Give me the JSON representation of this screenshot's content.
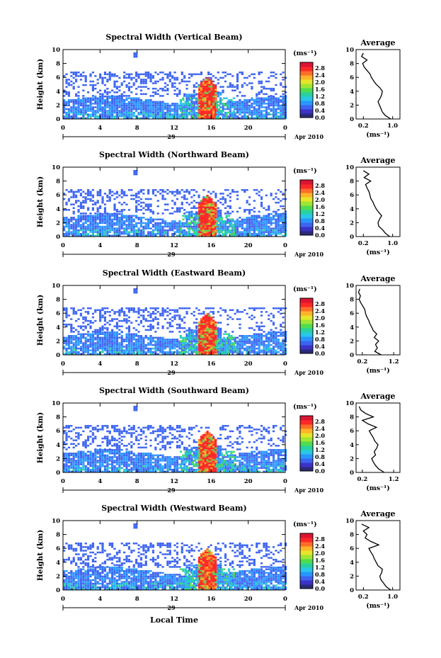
{
  "figure": {
    "x_label": "Local Time",
    "date_label": "Apr 2010",
    "day_label": "29",
    "avg_title": "Average",
    "unit_label": "(ms⁻¹)",
    "colorbar_ticks": [
      "2.8",
      "2.4",
      "2.0",
      "1.6",
      "1.2",
      "0.8",
      "0.4",
      "0.0"
    ],
    "colorbar_colors": [
      "#2a2a7a",
      "#3c32c8",
      "#3c64f0",
      "#2896ff",
      "#28c8e6",
      "#28d2a0",
      "#50dc50",
      "#a0e632",
      "#e6e628",
      "#ffb428",
      "#ff6e28",
      "#ff2828",
      "#dc1432"
    ],
    "accent_blue": "#3c50e6",
    "accent_red": "#ff3020"
  },
  "chart_data": [
    {
      "type": "heatmap",
      "title": "Spectral Width (Vertical Beam)",
      "ylabel": "Height (km)",
      "xlim": [
        0,
        24
      ],
      "ylim": [
        0,
        10
      ],
      "xticks": [
        "0",
        "4",
        "8",
        "12",
        "16",
        "20",
        "0"
      ],
      "yticks": [
        "0",
        "2",
        "4",
        "6",
        "8",
        "10"
      ],
      "colorbar_range": [
        0.0,
        2.8
      ],
      "avg_xticks": [
        "0.2",
        "1.0"
      ],
      "avg_xlim": [
        0.0,
        1.2
      ],
      "avg_heights": [
        0,
        0.5,
        1,
        1.5,
        2,
        2.5,
        3,
        3.5,
        4,
        4.5,
        5,
        5.5,
        6,
        6.5,
        7,
        7.5,
        8,
        8.5,
        9,
        9.5
      ],
      "avg_values": [
        0.95,
        0.8,
        0.72,
        0.68,
        0.64,
        0.6,
        0.66,
        0.7,
        0.72,
        0.65,
        0.55,
        0.48,
        0.42,
        0.38,
        0.3,
        0.22,
        0.18,
        0.3,
        0.15,
        0.2
      ]
    },
    {
      "type": "heatmap",
      "title": "Spectral Width (Northward Beam)",
      "ylabel": "Height (km)",
      "xlim": [
        0,
        24
      ],
      "ylim": [
        0,
        10
      ],
      "xticks": [
        "0",
        "4",
        "8",
        "12",
        "16",
        "20",
        "0"
      ],
      "yticks": [
        "0",
        "2",
        "4",
        "6",
        "8",
        "10"
      ],
      "colorbar_range": [
        0.0,
        2.8
      ],
      "avg_xticks": [
        "0.2",
        "1.0"
      ],
      "avg_xlim": [
        0.0,
        1.2
      ],
      "avg_heights": [
        0,
        0.5,
        1,
        1.5,
        2,
        2.5,
        3,
        3.5,
        4,
        4.5,
        5,
        5.5,
        6,
        6.5,
        7,
        7.5,
        8,
        8.5,
        9,
        9.5
      ],
      "avg_values": [
        0.92,
        0.8,
        0.72,
        0.62,
        0.6,
        0.64,
        0.7,
        0.62,
        0.55,
        0.5,
        0.46,
        0.4,
        0.38,
        0.35,
        0.3,
        0.26,
        0.4,
        0.22,
        0.35,
        0.2
      ]
    },
    {
      "type": "heatmap",
      "title": "Spectral Width (Eastward Beam)",
      "ylabel": "Height (km)",
      "xlim": [
        0,
        24
      ],
      "ylim": [
        0,
        10
      ],
      "xticks": [
        "0",
        "4",
        "8",
        "12",
        "16",
        "20",
        "0"
      ],
      "yticks": [
        "0",
        "2",
        "4",
        "6",
        "8",
        "10"
      ],
      "colorbar_range": [
        0.0,
        2.8
      ],
      "avg_xticks": [
        "0.2",
        "1.2"
      ],
      "avg_xlim": [
        0.0,
        1.4
      ],
      "avg_heights": [
        0,
        0.5,
        1,
        1.5,
        2,
        2.5,
        3,
        3.5,
        4,
        4.5,
        5,
        5.5,
        6,
        6.5,
        7,
        7.5,
        8,
        8.5,
        9,
        9.5
      ],
      "avg_values": [
        0.8,
        0.6,
        0.68,
        0.62,
        0.72,
        0.58,
        0.66,
        0.55,
        0.5,
        0.44,
        0.4,
        0.34,
        0.3,
        0.28,
        0.22,
        0.15,
        0.1,
        0.14,
        0.08,
        0.12
      ]
    },
    {
      "type": "heatmap",
      "title": "Spectral Width (Southward Beam)",
      "ylabel": "Height (km)",
      "xlim": [
        0,
        24
      ],
      "ylim": [
        0,
        10
      ],
      "xticks": [
        "0",
        "4",
        "8",
        "12",
        "16",
        "20",
        "0"
      ],
      "yticks": [
        "0",
        "2",
        "4",
        "6",
        "8",
        "10"
      ],
      "colorbar_range": [
        0.0,
        2.8
      ],
      "avg_xticks": [
        "0.2",
        "1.2"
      ],
      "avg_xlim": [
        0.0,
        1.4
      ],
      "avg_heights": [
        0,
        0.5,
        1,
        1.5,
        2,
        2.5,
        3,
        3.5,
        4,
        4.5,
        5,
        5.5,
        6,
        6.5,
        7,
        7.5,
        8,
        8.5,
        9,
        9.5
      ],
      "avg_values": [
        0.9,
        0.72,
        0.62,
        0.55,
        0.5,
        0.62,
        0.58,
        0.66,
        0.7,
        0.6,
        0.55,
        0.48,
        0.42,
        0.65,
        0.38,
        0.2,
        0.55,
        0.3,
        0.15,
        0.1
      ]
    },
    {
      "type": "heatmap",
      "title": "Spectral Width (Westward Beam)",
      "ylabel": "Height (km)",
      "xlim": [
        0,
        24
      ],
      "ylim": [
        0,
        10
      ],
      "xticks": [
        "0",
        "4",
        "8",
        "12",
        "16",
        "20",
        "0"
      ],
      "yticks": [
        "0",
        "2",
        "4",
        "6",
        "8",
        "10"
      ],
      "colorbar_range": [
        0.0,
        2.8
      ],
      "avg_xticks": [
        "0.2",
        "1.0"
      ],
      "avg_xlim": [
        0.0,
        1.2
      ],
      "avg_heights": [
        0,
        0.5,
        1,
        1.5,
        2,
        2.5,
        3,
        3.5,
        4,
        4.5,
        5,
        5.5,
        6,
        6.5,
        7,
        7.5,
        8,
        8.5,
        9,
        9.5
      ],
      "avg_values": [
        0.95,
        0.82,
        0.75,
        0.68,
        0.65,
        0.7,
        0.72,
        0.6,
        0.55,
        0.5,
        0.46,
        0.4,
        0.35,
        0.62,
        0.4,
        0.25,
        0.3,
        0.2,
        0.35,
        0.15
      ]
    }
  ]
}
